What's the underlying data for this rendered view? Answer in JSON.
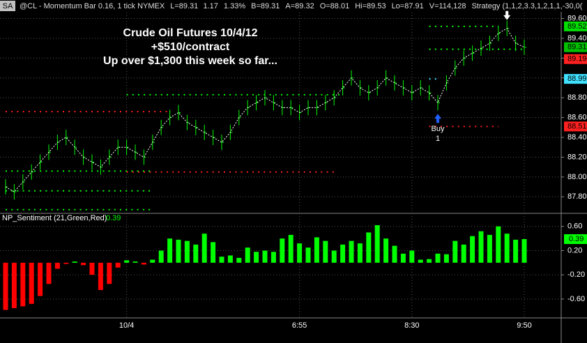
{
  "header": {
    "box": "SA",
    "items": [
      "@CL - Momentum Bar 0.16, 1 tick NYMEX",
      "L=89.31",
      "1.17",
      "1.33%",
      "B=89.31",
      "A=89.32",
      "O=88.01",
      "Hi=89.53",
      "Lo=87.91",
      "V=114,128",
      "Strategy (1,1,2,3.3,1,2,1,1,-30,0("
    ]
  },
  "chart_data": [
    {
      "type": "price",
      "annotations": [
        "Crude Oil Futures 10/4/12",
        "+$510/contract",
        "Up over $1,300 this week so far..."
      ],
      "signal": {
        "label": "Buy",
        "quantity": "1",
        "index": 50
      },
      "exit_index": 58,
      "color": "#00ff00",
      "average_color": "#ffffff",
      "values": [
        87.9,
        87.85,
        87.95,
        88.05,
        88.15,
        88.25,
        88.35,
        88.4,
        88.3,
        88.2,
        88.15,
        88.1,
        88.2,
        88.3,
        88.3,
        88.25,
        88.2,
        88.35,
        88.5,
        88.6,
        88.65,
        88.55,
        88.5,
        88.45,
        88.4,
        88.35,
        88.45,
        88.6,
        88.7,
        88.75,
        88.8,
        88.75,
        88.7,
        88.7,
        88.65,
        88.7,
        88.7,
        88.75,
        88.8,
        88.9,
        89.0,
        88.9,
        88.85,
        88.9,
        89.0,
        88.95,
        88.9,
        88.85,
        88.9,
        88.85,
        88.75,
        88.95,
        89.1,
        89.2,
        89.25,
        89.3,
        89.35,
        89.45,
        89.5,
        89.35,
        89.31
      ],
      "levels": [
        {
          "value": 87.86,
          "from": 0,
          "to": 17,
          "color": "#00ff00"
        },
        {
          "value": 87.67,
          "from": 0,
          "to": 17,
          "color": "#00ff00"
        },
        {
          "value": 88.06,
          "from": 0,
          "to": 17,
          "color": "#00ff00"
        },
        {
          "value": 88.66,
          "from": 0,
          "to": 19,
          "color": "#ff2020"
        },
        {
          "value": 88.05,
          "from": 14,
          "to": 38,
          "color": "#ff2020"
        },
        {
          "value": 88.83,
          "from": 14,
          "to": 39,
          "color": "#00ff00"
        },
        {
          "value": 88.51,
          "from": 49,
          "to": 57,
          "color": "#ff2020"
        },
        {
          "value": 89.29,
          "from": 49,
          "to": 60,
          "color": "#00ff00"
        },
        {
          "value": 89.52,
          "from": 49,
          "to": 57,
          "color": "#00ff00"
        },
        {
          "value": 88.99,
          "from": 49,
          "to": 50,
          "color": "#40e0ff"
        }
      ],
      "ylim": [
        87.64,
        89.66
      ],
      "yticks": [
        {
          "value": 87.8,
          "label": "87.80"
        },
        {
          "value": 88.0,
          "label": "88.00"
        },
        {
          "value": 88.2,
          "label": "88.20"
        },
        {
          "value": 88.4,
          "label": "88.40"
        },
        {
          "value": 88.6,
          "label": "88.60"
        },
        {
          "value": 88.8,
          "label": "88.80"
        },
        {
          "value": 89.0,
          "label": "89.00"
        },
        {
          "value": 89.2,
          "label": "89.20"
        },
        {
          "value": 89.4,
          "label": "89.40"
        },
        {
          "value": 89.6,
          "label": "89.60"
        }
      ],
      "markers": [
        {
          "value": 89.52,
          "label": "89.52",
          "color": "#00e000"
        },
        {
          "value": 89.31,
          "label": "89.31",
          "color": "#00c000"
        },
        {
          "value": 89.19,
          "label": "89.19",
          "color": "#ff2020"
        },
        {
          "value": 88.99,
          "label": "88.99",
          "color": "#40e0ff"
        },
        {
          "value": 88.51,
          "label": "88.51",
          "color": "#ff2020"
        }
      ],
      "grid": true
    },
    {
      "type": "bar",
      "title": "NP_Sentiment (21,Green,Red)",
      "last": 0.39,
      "pos_color": "#00ff00",
      "neg_color": "#ff0000",
      "categories": [
        null,
        null,
        null,
        null,
        null,
        null,
        null,
        null,
        null,
        null,
        null,
        null,
        null,
        null,
        "10/4",
        null,
        null,
        null,
        null,
        null,
        null,
        null,
        null,
        null,
        null,
        null,
        null,
        null,
        null,
        null,
        null,
        null,
        null,
        null,
        "6:55",
        null,
        null,
        null,
        null,
        null,
        null,
        null,
        null,
        null,
        null,
        null,
        null,
        "8:30",
        null,
        null,
        null,
        null,
        null,
        null,
        null,
        null,
        null,
        null,
        null,
        null,
        "9:50"
      ],
      "values": [
        -0.78,
        -0.75,
        -0.72,
        -0.68,
        -0.55,
        -0.35,
        -0.1,
        -0.02,
        0.02,
        -0.04,
        -0.2,
        -0.45,
        -0.35,
        -0.08,
        0.04,
        0.02,
        -0.03,
        0.05,
        0.2,
        0.4,
        0.38,
        0.36,
        0.3,
        0.48,
        0.34,
        0.1,
        0.12,
        0.08,
        0.25,
        0.18,
        0.2,
        0.18,
        0.4,
        0.46,
        0.32,
        0.25,
        0.42,
        0.36,
        0.2,
        0.3,
        0.36,
        0.32,
        0.5,
        0.62,
        0.4,
        0.28,
        0.15,
        0.2,
        0.05,
        0.06,
        0.15,
        0.14,
        0.36,
        0.3,
        0.44,
        0.52,
        0.46,
        0.6,
        0.48,
        0.38,
        0.39
      ],
      "ylim": [
        -0.9,
        0.77
      ],
      "yticks": [
        {
          "value": -0.6,
          "label": "-0.60"
        },
        {
          "value": -0.2,
          "label": "-0.20"
        },
        {
          "value": 0.2,
          "label": "0.20"
        },
        {
          "value": 0.6,
          "label": "0.60"
        }
      ],
      "grid": true
    }
  ]
}
